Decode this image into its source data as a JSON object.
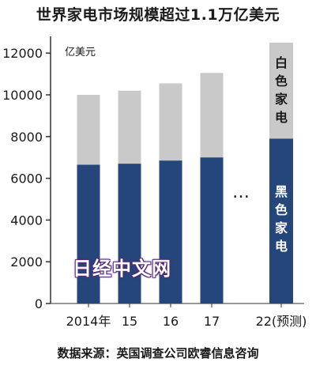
{
  "title": "世界家电市场规模超过1.1万亿美元",
  "source": "数据来源：英国调查公司欧睿信息咨询",
  "watermark": "日经中文网",
  "colors": {
    "black": "#25467a",
    "white": "#c9c9c9",
    "axis": "#333333"
  },
  "chart_data": {
    "type": "bar",
    "stacked": true,
    "ylabel": "亿美元",
    "ylim": [
      0,
      12500
    ],
    "yticks": [
      0,
      2000,
      4000,
      6000,
      8000,
      10000,
      12000
    ],
    "categories": [
      "2014年",
      "15",
      "16",
      "17",
      "22(预测)"
    ],
    "ellipsis": "…",
    "series": [
      {
        "name": "黑色家电",
        "color": "#25467a",
        "values": [
          6650,
          6700,
          6850,
          7000,
          7900
        ]
      },
      {
        "name": "白色家电",
        "color": "#c9c9c9",
        "values": [
          3350,
          3500,
          3700,
          4050,
          4600
        ]
      }
    ]
  }
}
